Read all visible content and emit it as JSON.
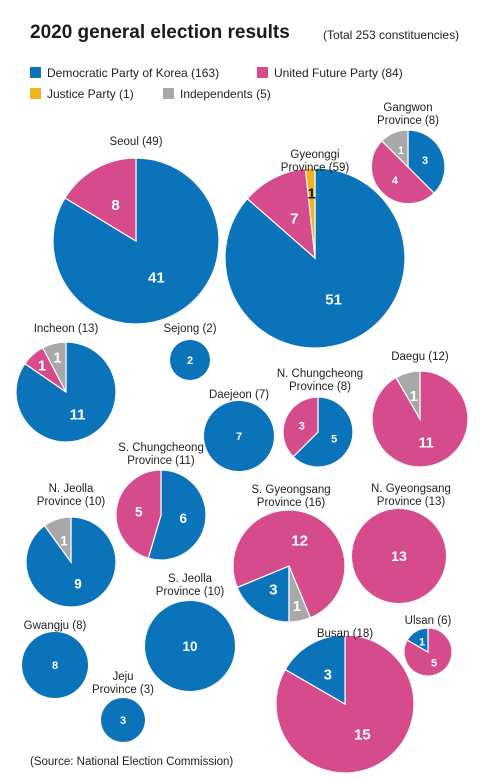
{
  "header": {
    "title": "2020 general election results",
    "total": "(Total 253 constituencies)"
  },
  "source": "(Source: National Election Commission)",
  "colors": {
    "dpk": "#0a73b9",
    "ufp": "#d64b8c",
    "justice": "#f2b21c",
    "independent": "#a8a8a8"
  },
  "chart_data": {
    "type": "pie",
    "title": "2020 general election results",
    "subtitle": "(Total 253 constituencies)",
    "legend": [
      {
        "key": "dpk",
        "label": "Democratic Party of Korea (163)"
      },
      {
        "key": "ufp",
        "label": "United Future Party (84)"
      },
      {
        "key": "justice",
        "label": "Justice Party (1)"
      },
      {
        "key": "independent",
        "label": "Independents (5)"
      }
    ],
    "regions": [
      {
        "id": "seoul",
        "name": [
          "Seoul (49)"
        ],
        "total": 49,
        "seats": {
          "dpk": 41,
          "ufp": 8
        }
      },
      {
        "id": "gyeonggi",
        "name": [
          "Gyeonggi",
          "Province (59)"
        ],
        "total": 59,
        "seats": {
          "dpk": 51,
          "ufp": 7,
          "justice": 1
        }
      },
      {
        "id": "gangwon",
        "name": [
          "Gangwon",
          "Province (8)"
        ],
        "total": 8,
        "seats": {
          "dpk": 3,
          "ufp": 4,
          "independent": 1
        }
      },
      {
        "id": "incheon",
        "name": [
          "Incheon (13)"
        ],
        "total": 13,
        "seats": {
          "dpk": 11,
          "ufp": 1,
          "independent": 1
        }
      },
      {
        "id": "sejong",
        "name": [
          "Sejong (2)"
        ],
        "total": 2,
        "seats": {
          "dpk": 2
        }
      },
      {
        "id": "daejeon",
        "name": [
          "Daejeon (7)"
        ],
        "total": 7,
        "seats": {
          "dpk": 7
        }
      },
      {
        "id": "n-chungcheong",
        "name": [
          "N. Chungcheong",
          "Province (8)"
        ],
        "total": 8,
        "seats": {
          "dpk": 5,
          "ufp": 3
        }
      },
      {
        "id": "daegu",
        "name": [
          "Daegu (12)"
        ],
        "total": 12,
        "seats": {
          "ufp": 11,
          "independent": 1
        }
      },
      {
        "id": "s-chungcheong",
        "name": [
          "S. Chungcheong",
          "Province (11)"
        ],
        "total": 11,
        "seats": {
          "dpk": 6,
          "ufp": 5
        }
      },
      {
        "id": "n-jeolla",
        "name": [
          "N. Jeolla",
          "Province (10)"
        ],
        "total": 10,
        "seats": {
          "dpk": 9,
          "independent": 1
        }
      },
      {
        "id": "s-gyeongsang",
        "name": [
          "S. Gyeongsang",
          "Province (16)"
        ],
        "total": 16,
        "seats": {
          "dpk": 3,
          "ufp": 12,
          "independent": 1
        }
      },
      {
        "id": "n-gyeongsang",
        "name": [
          "N. Gyeongsang",
          "Province (13)"
        ],
        "total": 13,
        "seats": {
          "ufp": 13
        }
      },
      {
        "id": "s-jeolla",
        "name": [
          "S. Jeolla",
          "Province (10)"
        ],
        "total": 10,
        "seats": {
          "dpk": 10
        }
      },
      {
        "id": "gwangju",
        "name": [
          "Gwangju (8)"
        ],
        "total": 8,
        "seats": {
          "dpk": 8
        }
      },
      {
        "id": "busan",
        "name": [
          "Busan (18)"
        ],
        "total": 18,
        "seats": {
          "dpk": 3,
          "ufp": 15
        }
      },
      {
        "id": "ulsan",
        "name": [
          "Ulsan (6)"
        ],
        "total": 6,
        "seats": {
          "ufp": 5,
          "dpk": 1
        }
      },
      {
        "id": "jeju",
        "name": [
          "Jeju",
          "Province (3)"
        ],
        "total": 3,
        "seats": {
          "dpk": 3
        }
      }
    ]
  }
}
